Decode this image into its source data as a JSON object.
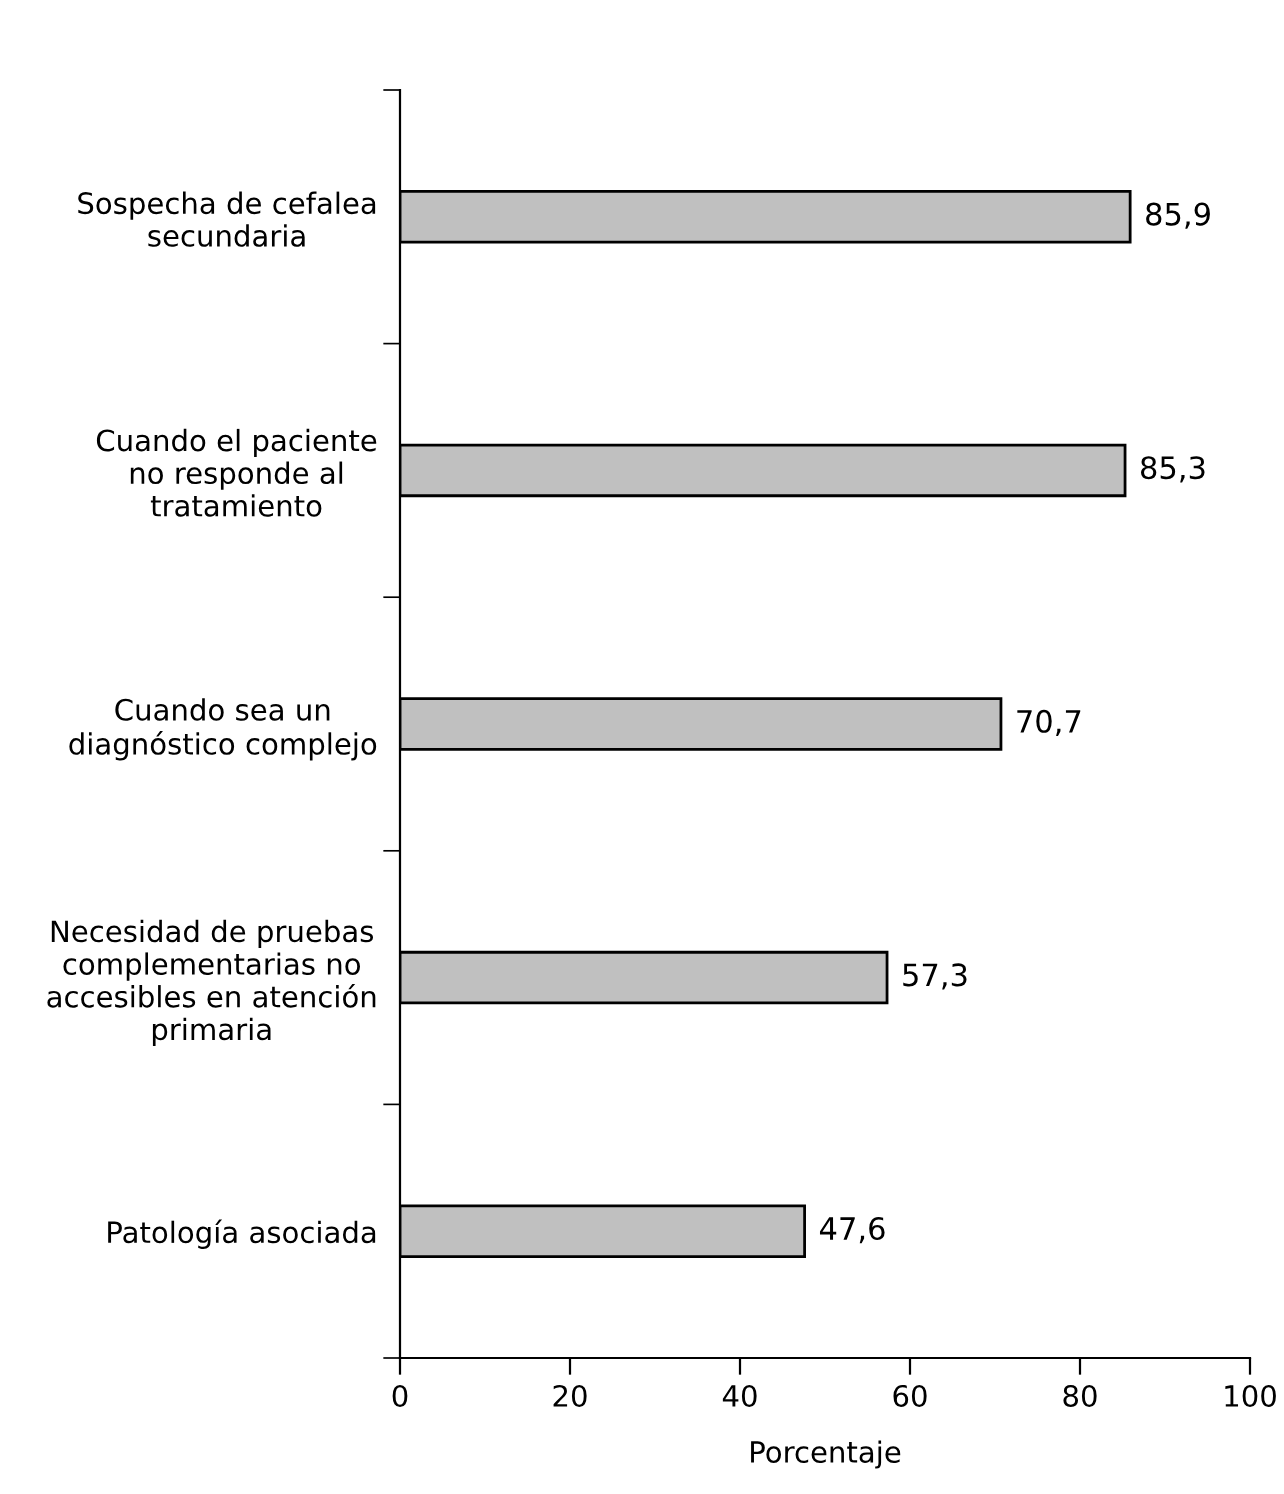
{
  "chart_data": {
    "type": "bar",
    "orientation": "horizontal",
    "categories": [
      "Sospecha de cefalea\nsecundaria",
      "Cuando el paciente\nno responde al\ntratamiento",
      "Cuando sea un\ndiagnóstico complejo",
      "Necesidad de pruebas\ncomplementarias no\naccesibles en atención\nprimaria",
      "Patología asociada"
    ],
    "values": [
      85.9,
      85.3,
      70.7,
      57.3,
      47.6
    ],
    "value_labels": [
      "85,9",
      "85,3",
      "70,7",
      "57,3",
      "47,6"
    ],
    "color": "#c0c0c0",
    "xlabel": "Porcentaje",
    "xlim": [
      0,
      100
    ],
    "xticks": [
      0,
      20,
      40,
      60,
      80,
      100
    ],
    "grid": false
  }
}
